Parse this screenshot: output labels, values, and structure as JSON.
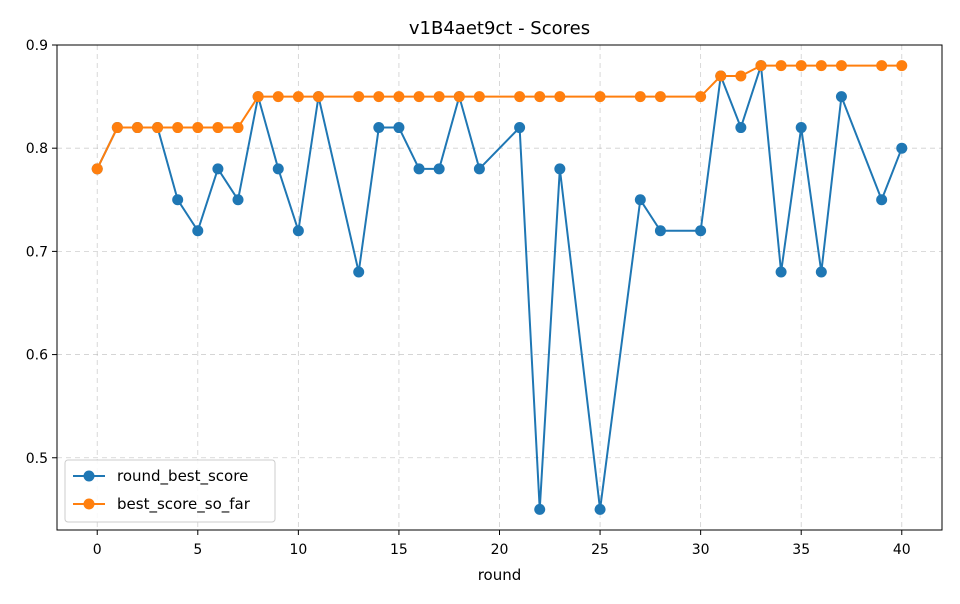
{
  "chart_data": {
    "type": "line",
    "title": "v1B4aet9ct - Scores",
    "xlabel": "round",
    "ylabel": "",
    "xlim": [
      -2,
      42
    ],
    "ylim": [
      0.43,
      0.9
    ],
    "xticks": [
      0,
      5,
      10,
      15,
      20,
      25,
      30,
      35,
      40
    ],
    "yticks": [
      0.5,
      0.6,
      0.7,
      0.8,
      0.9
    ],
    "grid": true,
    "legend_position": "bottom-left",
    "series": [
      {
        "name": "round_best_score",
        "color": "#1f77b4",
        "x": [
          0,
          1,
          2,
          3,
          4,
          5,
          6,
          7,
          8,
          9,
          10,
          11,
          13,
          14,
          15,
          16,
          17,
          18,
          19,
          21,
          22,
          23,
          25,
          27,
          28,
          30,
          31,
          32,
          33,
          34,
          35,
          36,
          37,
          39,
          40
        ],
        "y": [
          0.78,
          0.82,
          0.82,
          0.82,
          0.75,
          0.72,
          0.78,
          0.75,
          0.85,
          0.78,
          0.72,
          0.85,
          0.68,
          0.82,
          0.82,
          0.78,
          0.78,
          0.85,
          0.78,
          0.82,
          0.45,
          0.78,
          0.45,
          0.75,
          0.72,
          0.72,
          0.87,
          0.82,
          0.88,
          0.68,
          0.82,
          0.68,
          0.85,
          0.75,
          0.8
        ]
      },
      {
        "name": "best_score_so_far",
        "color": "#ff7f0e",
        "x": [
          0,
          1,
          2,
          3,
          4,
          5,
          6,
          7,
          8,
          9,
          10,
          11,
          13,
          14,
          15,
          16,
          17,
          18,
          19,
          21,
          22,
          23,
          25,
          27,
          28,
          30,
          31,
          32,
          33,
          34,
          35,
          36,
          37,
          39,
          40
        ],
        "y": [
          0.78,
          0.82,
          0.82,
          0.82,
          0.82,
          0.82,
          0.82,
          0.82,
          0.85,
          0.85,
          0.85,
          0.85,
          0.85,
          0.85,
          0.85,
          0.85,
          0.85,
          0.85,
          0.85,
          0.85,
          0.85,
          0.85,
          0.85,
          0.85,
          0.85,
          0.85,
          0.87,
          0.87,
          0.88,
          0.88,
          0.88,
          0.88,
          0.88,
          0.88,
          0.88
        ]
      }
    ]
  }
}
